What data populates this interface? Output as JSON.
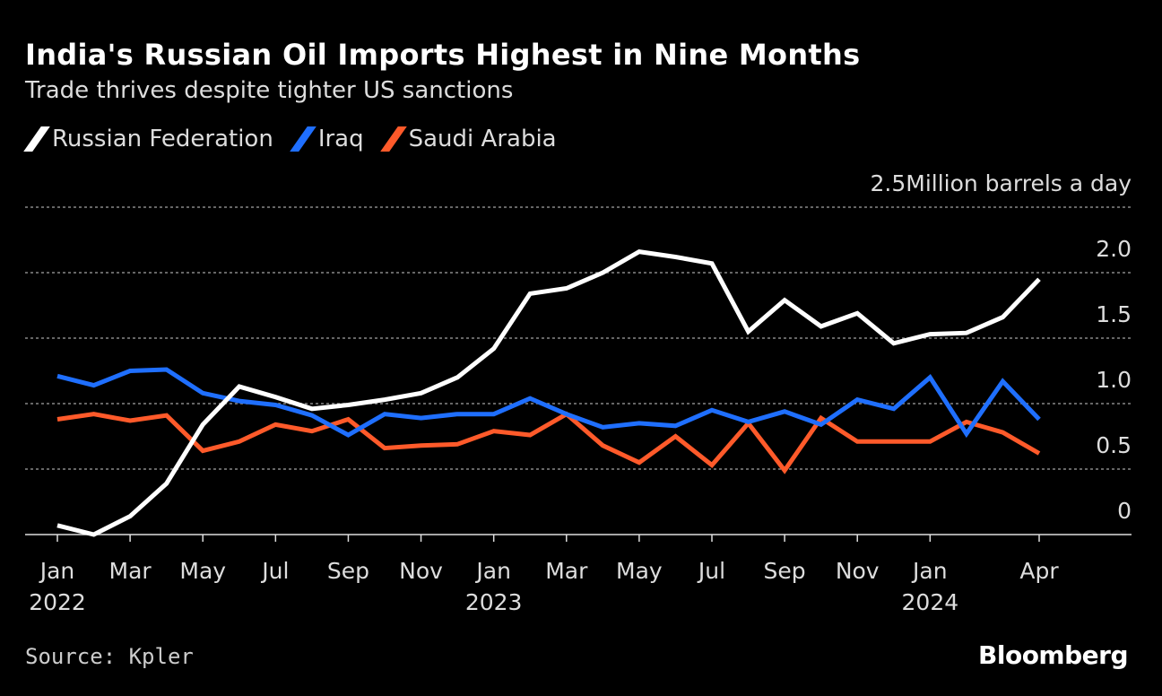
{
  "chart_data": {
    "type": "line",
    "title": "India's Russian Oil Imports Highest in Nine Months",
    "subtitle": "Trade thrives despite tighter US sanctions",
    "unit_label": "Million barrels a day",
    "ylim": [
      0,
      2.5
    ],
    "yticks": [
      0,
      0.5,
      1.0,
      1.5,
      2.0,
      2.5
    ],
    "ytick_labels": [
      "0",
      "0.5",
      "1.0",
      "1.5",
      "2.0",
      "2.5"
    ],
    "grid": true,
    "legend_position": "top-left",
    "x": [
      "2022-01",
      "2022-02",
      "2022-03",
      "2022-04",
      "2022-05",
      "2022-06",
      "2022-07",
      "2022-08",
      "2022-09",
      "2022-10",
      "2022-11",
      "2022-12",
      "2023-01",
      "2023-02",
      "2023-03",
      "2023-04",
      "2023-05",
      "2023-06",
      "2023-07",
      "2023-08",
      "2023-09",
      "2023-10",
      "2023-11",
      "2023-12",
      "2024-01",
      "2024-02",
      "2024-03",
      "2024-04"
    ],
    "xticks": [
      {
        "index": 0,
        "month": "Jan",
        "year": "2022"
      },
      {
        "index": 2,
        "month": "Mar"
      },
      {
        "index": 4,
        "month": "May"
      },
      {
        "index": 6,
        "month": "Jul"
      },
      {
        "index": 8,
        "month": "Sep"
      },
      {
        "index": 10,
        "month": "Nov"
      },
      {
        "index": 12,
        "month": "Jan",
        "year": "2023"
      },
      {
        "index": 14,
        "month": "Mar"
      },
      {
        "index": 16,
        "month": "May"
      },
      {
        "index": 18,
        "month": "Jul"
      },
      {
        "index": 20,
        "month": "Sep"
      },
      {
        "index": 22,
        "month": "Nov"
      },
      {
        "index": 24,
        "month": "Jan",
        "year": "2024"
      },
      {
        "index": 27,
        "month": "Apr"
      }
    ],
    "series": [
      {
        "name": "Russian Federation",
        "color": "#ffffff",
        "values": [
          0.07,
          0.0,
          0.14,
          0.39,
          0.84,
          1.13,
          1.05,
          0.96,
          0.99,
          1.03,
          1.08,
          1.2,
          1.42,
          1.84,
          1.88,
          2.0,
          2.16,
          2.12,
          2.07,
          1.55,
          1.79,
          1.59,
          1.69,
          1.46,
          1.53,
          1.54,
          1.66,
          1.95
        ]
      },
      {
        "name": "Iraq",
        "color": "#1f6fff",
        "values": [
          1.21,
          1.14,
          1.25,
          1.26,
          1.08,
          1.02,
          0.99,
          0.91,
          0.76,
          0.92,
          0.89,
          0.92,
          0.92,
          1.04,
          0.92,
          0.82,
          0.85,
          0.83,
          0.95,
          0.86,
          0.94,
          0.84,
          1.03,
          0.96,
          1.2,
          0.77,
          1.17,
          0.88
        ]
      },
      {
        "name": "Saudi Arabia",
        "color": "#ff5a2a",
        "values": [
          0.88,
          0.92,
          0.87,
          0.91,
          0.64,
          0.71,
          0.84,
          0.79,
          0.88,
          0.66,
          0.68,
          0.69,
          0.79,
          0.76,
          0.92,
          0.68,
          0.55,
          0.75,
          0.53,
          0.85,
          0.49,
          0.89,
          0.71,
          0.71,
          0.71,
          0.86,
          0.78,
          0.62
        ]
      }
    ]
  },
  "source": "Source: Kpler",
  "logo": "Bloomberg"
}
